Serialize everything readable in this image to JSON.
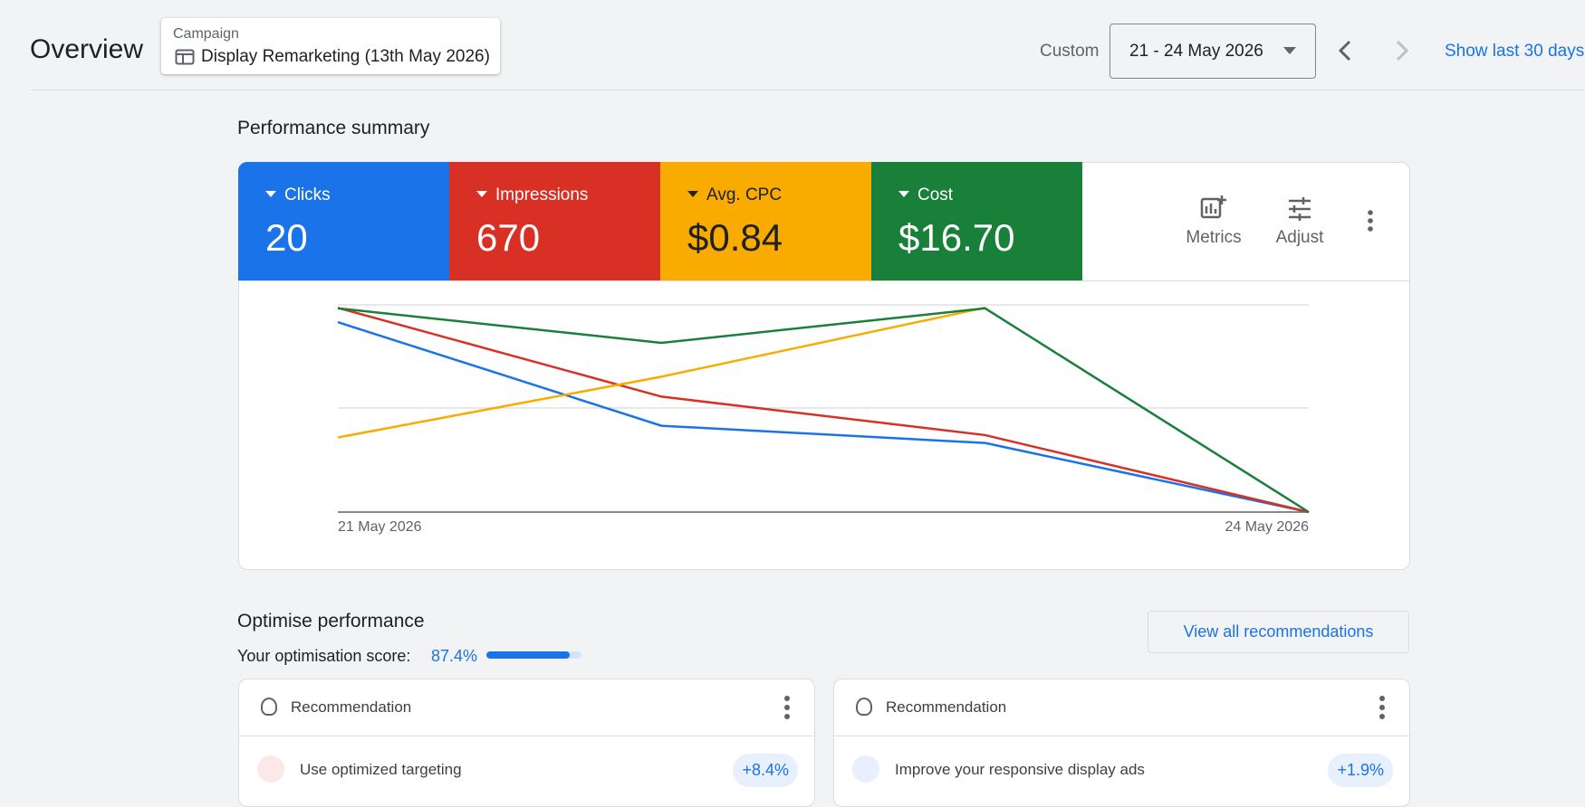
{
  "header": {
    "title": "Overview",
    "campaign_label": "Campaign",
    "campaign_name": "Display Remarketing (13th May 2026)",
    "range_type": "Custom",
    "date_range": "21 - 24 May 2026",
    "show_last_link": "Show last 30 days"
  },
  "summary": {
    "title": "Performance summary",
    "tools": [
      "Metrics",
      "Adjust"
    ]
  },
  "chart_data": {
    "type": "line",
    "categories": [
      "21 May 2026",
      null,
      null,
      "24 May 2026"
    ],
    "series": [
      {
        "name": "Clicks",
        "total": "20",
        "color": "#1a73e8",
        "values": [
          11,
          5,
          4,
          0
        ],
        "ylim": [
          0,
          12
        ]
      },
      {
        "name": "Impressions",
        "total": "670",
        "color": "#d93025",
        "values": [
          345,
          195,
          130,
          0
        ],
        "ylim": [
          0,
          350
        ]
      },
      {
        "name": "Avg. CPC",
        "total": "$0.84",
        "color": "#f9ab00",
        "values": [
          0.54,
          0.98,
          1.48,
          null
        ],
        "ylim": [
          0,
          1.5
        ]
      },
      {
        "name": "Cost",
        "total": "$16.70",
        "color": "#188038",
        "values": [
          5.9,
          4.9,
          5.9,
          0
        ],
        "ylim": [
          0,
          6
        ]
      }
    ]
  },
  "optimise": {
    "title": "Optimise performance",
    "score_label": "Your optimisation score:",
    "score": {
      "value": 87.4,
      "label": "87.4%"
    },
    "button": "View all recommendations",
    "cards": [
      {
        "header": "Recommendation",
        "item": "Use optimized targeting",
        "uplift": "+8.4%"
      },
      {
        "header": "Recommendation",
        "item": "Improve your responsive display ads",
        "uplift": "+1.9%"
      }
    ]
  }
}
